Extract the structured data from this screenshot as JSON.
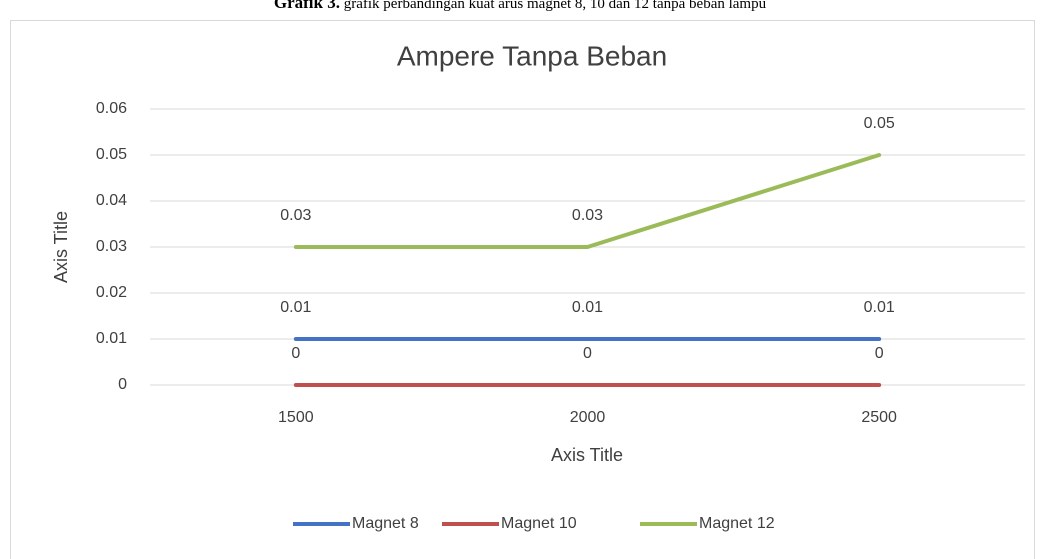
{
  "caption_label": "Grafik 3.",
  "caption": "grafik perbandingan kuat arus magnet 8, 10 dan 12 tanpa beban lampu",
  "chart_data": {
    "type": "line",
    "title": "Ampere Tanpa Beban",
    "x_label": "Axis Title",
    "y_label": "Axis Title",
    "categories": [
      "1500",
      "2000",
      "2500"
    ],
    "series": [
      {
        "name": "Magnet 8",
        "color": "#4472c4",
        "values": [
          0.01,
          0.01,
          0.01
        ]
      },
      {
        "name": "Magnet 10",
        "color": "#c0504d",
        "values": [
          0,
          0,
          0
        ]
      },
      {
        "name": "Magnet 12",
        "color": "#9bbb59",
        "values": [
          0.03,
          0.03,
          0.05
        ]
      }
    ],
    "ylim": [
      0,
      0.06
    ],
    "yticks": [
      0,
      0.01,
      0.02,
      0.03,
      0.04,
      0.05,
      0.06
    ],
    "grid": true,
    "data_labels": true,
    "legend": "bottom"
  }
}
